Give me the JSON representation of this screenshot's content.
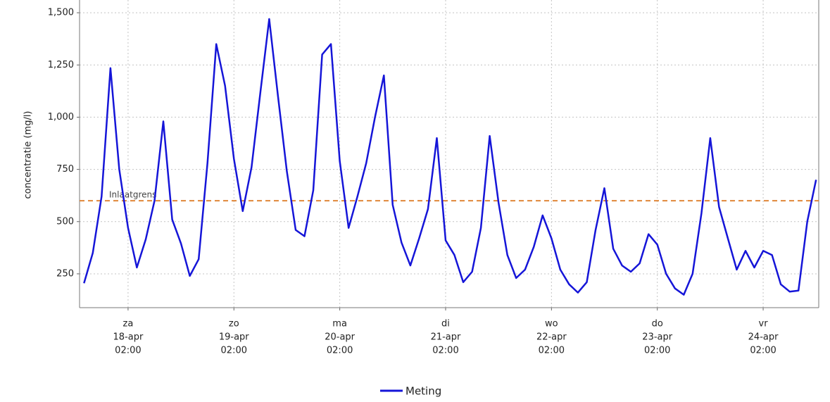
{
  "chart_data": {
    "type": "line",
    "y_label": "concentratie (mg/l)",
    "ylim": [
      88,
      1561
    ],
    "yticks": [
      {
        "value": 250,
        "label": "250"
      },
      {
        "value": 500,
        "label": "500"
      },
      {
        "value": 750,
        "label": "750"
      },
      {
        "value": 1000,
        "label": "1,000"
      },
      {
        "value": 1250,
        "label": "1,250"
      },
      {
        "value": 1500,
        "label": "1,500"
      }
    ],
    "xlim": [
      "17-apr 15:00",
      "24-apr 14:36"
    ],
    "xticks": [
      {
        "value": "18-apr 02:00",
        "label": [
          "za",
          "18-apr",
          "02:00"
        ]
      },
      {
        "value": "19-apr 02:00",
        "label": [
          "zo",
          "19-apr",
          "02:00"
        ]
      },
      {
        "value": "20-apr 02:00",
        "label": [
          "ma",
          "20-apr",
          "02:00"
        ]
      },
      {
        "value": "21-apr 02:00",
        "label": [
          "di",
          "21-apr",
          "02:00"
        ]
      },
      {
        "value": "22-apr 02:00",
        "label": [
          "wo",
          "22-apr",
          "02:00"
        ]
      },
      {
        "value": "23-apr 02:00",
        "label": [
          "do",
          "23-apr",
          "02:00"
        ]
      },
      {
        "value": "24-apr 02:00",
        "label": [
          "vr",
          "24-apr",
          "02:00"
        ]
      }
    ],
    "grid": true,
    "threshold": {
      "value": 600,
      "label": "Inlaatgrens",
      "color": "#e0883a"
    },
    "x": [
      "17-apr 16:00",
      "17-apr 18:00",
      "17-apr 20:00",
      "17-apr 22:00",
      "18-apr 00:00",
      "18-apr 02:00",
      "18-apr 04:00",
      "18-apr 06:00",
      "18-apr 08:00",
      "18-apr 10:00",
      "18-apr 12:00",
      "18-apr 14:00",
      "18-apr 16:00",
      "18-apr 18:00",
      "18-apr 20:00",
      "18-apr 22:00",
      "19-apr 00:00",
      "19-apr 02:00",
      "19-apr 04:00",
      "19-apr 06:00",
      "19-apr 08:00",
      "19-apr 10:00",
      "19-apr 12:00",
      "19-apr 14:00",
      "19-apr 16:00",
      "19-apr 18:00",
      "19-apr 20:00",
      "19-apr 22:00",
      "20-apr 00:00",
      "20-apr 02:00",
      "20-apr 04:00",
      "20-apr 06:00",
      "20-apr 08:00",
      "20-apr 10:00",
      "20-apr 12:00",
      "20-apr 14:00",
      "20-apr 16:00",
      "20-apr 18:00",
      "20-apr 20:00",
      "20-apr 22:00",
      "21-apr 00:00",
      "21-apr 02:00",
      "21-apr 04:00",
      "21-apr 06:00",
      "21-apr 08:00",
      "21-apr 10:00",
      "21-apr 12:00",
      "21-apr 14:00",
      "21-apr 16:00",
      "21-apr 18:00",
      "21-apr 20:00",
      "21-apr 22:00",
      "22-apr 00:00",
      "22-apr 02:00",
      "22-apr 04:00",
      "22-apr 06:00",
      "22-apr 08:00",
      "22-apr 10:00",
      "22-apr 12:00",
      "22-apr 14:00",
      "22-apr 16:00",
      "22-apr 18:00",
      "22-apr 20:00",
      "22-apr 22:00",
      "23-apr 00:00",
      "23-apr 02:00",
      "23-apr 04:00",
      "23-apr 06:00",
      "23-apr 08:00",
      "23-apr 10:00",
      "23-apr 12:00",
      "23-apr 14:00",
      "23-apr 16:00",
      "23-apr 18:00",
      "23-apr 20:00",
      "23-apr 22:00",
      "24-apr 00:00",
      "24-apr 02:00",
      "24-apr 04:00",
      "24-apr 06:00",
      "24-apr 08:00",
      "24-apr 10:00",
      "24-apr 12:00",
      "24-apr 14:00"
    ],
    "series": [
      {
        "name": "Meting",
        "color": "#1515d8",
        "values": [
          205,
          350,
          620,
          1235,
          750,
          470,
          280,
          415,
          600,
          980,
          510,
          395,
          240,
          320,
          780,
          1350,
          1150,
          800,
          550,
          760,
          1120,
          1470,
          1100,
          740,
          460,
          430,
          650,
          1300,
          1350,
          790,
          470,
          620,
          780,
          1000,
          1200,
          580,
          400,
          290,
          420,
          560,
          900,
          410,
          340,
          210,
          260,
          470,
          910,
          590,
          340,
          230,
          270,
          380,
          530,
          420,
          270,
          200,
          160,
          210,
          460,
          660,
          370,
          290,
          260,
          300,
          440,
          390,
          250,
          180,
          150,
          250,
          540,
          900,
          570,
          420,
          270,
          360,
          280,
          360,
          340,
          200,
          165,
          170,
          500,
          700
        ]
      }
    ]
  }
}
